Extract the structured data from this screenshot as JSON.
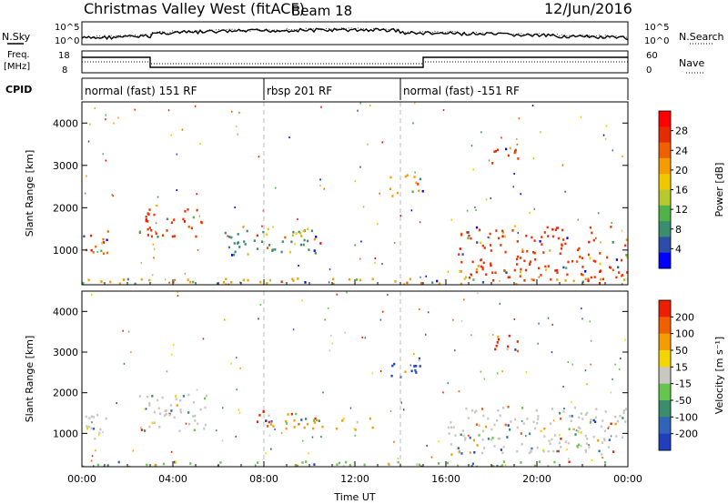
{
  "header": {
    "title": "Christmas Valley West (fitACF)",
    "beam": "Beam 18",
    "date": "12/Jun/2016"
  },
  "labels": {
    "nsky": "N.Sky",
    "nsearch": "N.Search",
    "freq_line1": "Freq.",
    "freq_line2": "[MHz]",
    "nave": "Nave",
    "cpid": "CPID",
    "nplot_top": "10^5",
    "nplot_bot": "10^0",
    "freq_top": "18",
    "freq_bot": "8",
    "nave_top": "60",
    "nave_bot": "0"
  },
  "cpid_segments": [
    {
      "label": "normal (fast) 151 RF",
      "start_h": 0,
      "end_h": 8
    },
    {
      "label": "rbsp 201 RF",
      "start_h": 8,
      "end_h": 14
    },
    {
      "label": "normal (fast) -151 RF",
      "start_h": 14,
      "end_h": 24
    }
  ],
  "chart_data": [
    {
      "type": "heatmap",
      "title": "",
      "xlabel": "Time UT",
      "ylabel": "Slant Range [km]",
      "xlim_hours": [
        0,
        24
      ],
      "ylim_km": [
        180,
        4500
      ],
      "x_ticks": [
        "00:00",
        "04:00",
        "08:00",
        "12:00",
        "16:00",
        "20:00",
        "00:00"
      ],
      "y_ticks": [
        1000,
        2000,
        3000,
        4000
      ],
      "colorbar": {
        "label": "Power [dB]",
        "ticks": [
          "4",
          "8",
          "12",
          "16",
          "20",
          "24",
          "28"
        ],
        "colors": [
          "#0000ff",
          "#2b4fa8",
          "#3c8c6e",
          "#4fb34a",
          "#b6c92f",
          "#f0c800",
          "#f59d00",
          "#f06000",
          "#e52b00",
          "#ff0000"
        ]
      },
      "blobs": [
        {
          "t0": 0.0,
          "t1": 1.2,
          "r0": 800,
          "r1": 1500,
          "color": "#f07000"
        },
        {
          "t0": 2.5,
          "t1": 5.5,
          "r0": 1300,
          "r1": 2000,
          "color": "#ee3300"
        },
        {
          "t0": 6.0,
          "t1": 10.5,
          "r0": 900,
          "r1": 1500,
          "color": "#3c8c6e"
        },
        {
          "t0": 7.5,
          "t1": 10.0,
          "r0": 1350,
          "r1": 1550,
          "color": "#f0c800"
        },
        {
          "t0": 13.5,
          "t1": 15.0,
          "r0": 2300,
          "r1": 2800,
          "color": "#f59d00"
        },
        {
          "t0": 16.5,
          "t1": 24.0,
          "r0": 300,
          "r1": 1600,
          "color": "#ee3300"
        },
        {
          "t0": 18.0,
          "t1": 19.3,
          "r0": 3000,
          "r1": 3500,
          "color": "#ee3300"
        },
        {
          "t0": 0.0,
          "t1": 24.0,
          "r0": 200,
          "r1": 350,
          "color": "#f59d00"
        }
      ]
    },
    {
      "type": "heatmap",
      "title": "",
      "xlabel": "Time UT",
      "ylabel": "Slant Range [km]",
      "xlim_hours": [
        0,
        24
      ],
      "ylim_km": [
        180,
        4500
      ],
      "x_ticks": [
        "00:00",
        "04:00",
        "08:00",
        "12:00",
        "16:00",
        "20:00",
        "00:00"
      ],
      "y_ticks": [
        1000,
        2000,
        3000,
        4000
      ],
      "colorbar": {
        "label": "Velocity [m s⁻¹]",
        "ticks": [
          "200",
          "100",
          "50",
          "15",
          "-15",
          "-50",
          "-100",
          "-200"
        ],
        "colors": [
          "#1f3fbf",
          "#2f64b8",
          "#3c8c6e",
          "#67c44c",
          "#c8c8c0",
          "#f3d500",
          "#f59d00",
          "#f06000",
          "#ee1f00"
        ]
      },
      "blobs": [
        {
          "t0": 0.0,
          "t1": 1.2,
          "r0": 800,
          "r1": 1500,
          "color": "#c8c8c0"
        },
        {
          "t0": 2.5,
          "t1": 5.5,
          "r0": 1000,
          "r1": 2000,
          "color": "#c8c8c0"
        },
        {
          "t0": 7.5,
          "t1": 10.5,
          "r0": 1300,
          "r1": 1600,
          "color": "#ee1f00"
        },
        {
          "t0": 8.0,
          "t1": 13.0,
          "r0": 1100,
          "r1": 1400,
          "color": "#f59d00"
        },
        {
          "t0": 13.5,
          "t1": 15.0,
          "r0": 2400,
          "r1": 2900,
          "color": "#1f3fbf"
        },
        {
          "t0": 16.0,
          "t1": 24.0,
          "r0": 500,
          "r1": 1700,
          "color": "#c8c8c0"
        },
        {
          "t0": 18.0,
          "t1": 19.3,
          "r0": 3000,
          "r1": 3500,
          "color": "#ee1f00"
        },
        {
          "t0": 0.0,
          "t1": 24.0,
          "r0": 200,
          "r1": 330,
          "color": "#67c44c"
        }
      ]
    }
  ]
}
